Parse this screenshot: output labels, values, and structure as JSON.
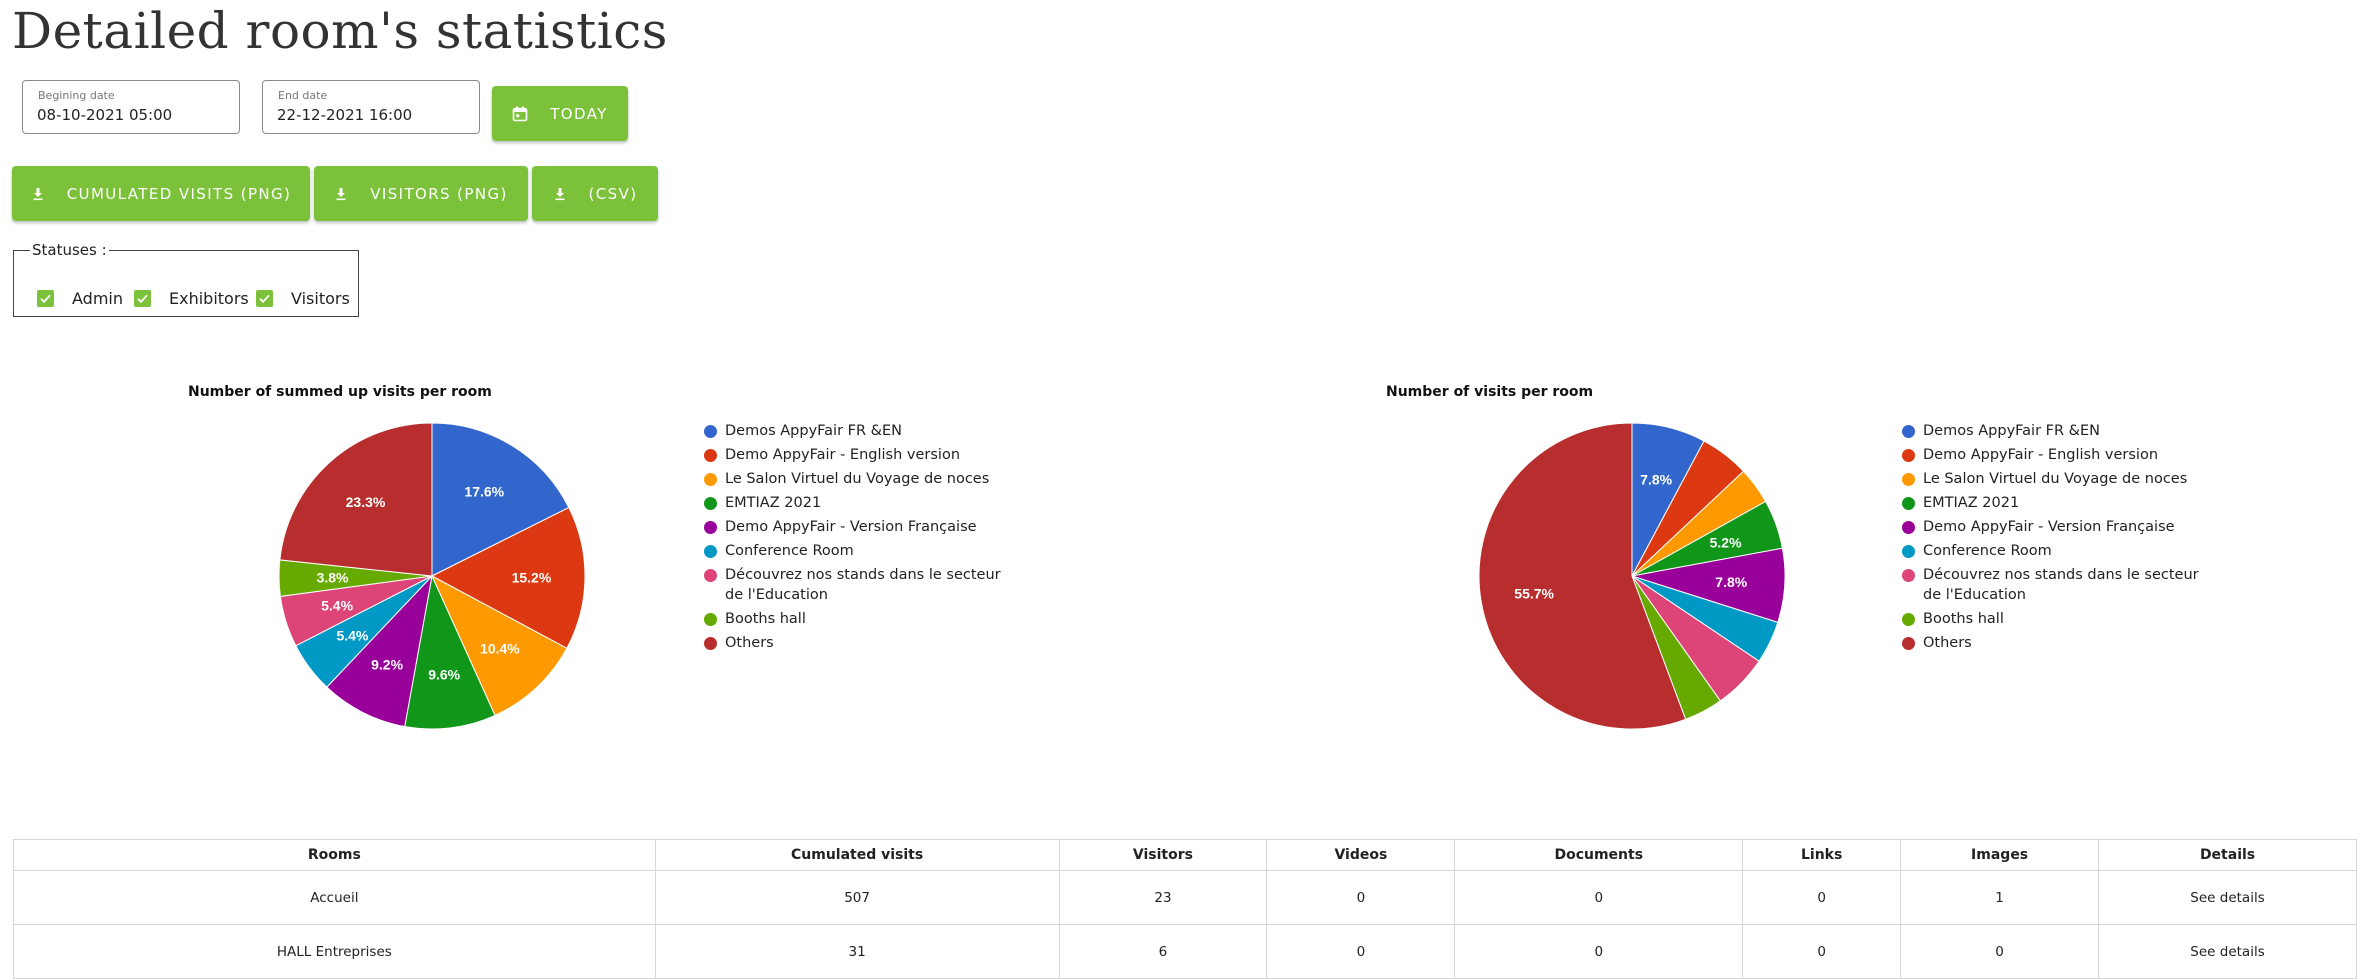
{
  "page": {
    "title": "Detailed room's statistics"
  },
  "filters": {
    "begin_label": "Begining date",
    "begin_value": "08-10-2021 05:00",
    "end_label": "End date",
    "end_value": "22-12-2021 16:00",
    "today_label": "TODAY",
    "today_icon": "calendar-icon"
  },
  "exports": {
    "cumulated_label": "CUMULATED VISITS (PNG)",
    "visitors_label": "VISITORS (PNG)",
    "csv_label": "(CSV)",
    "icon": "download-icon"
  },
  "statuses": {
    "legend": "Statuses :",
    "items": [
      {
        "label": "Admin",
        "checked": true
      },
      {
        "label": "Exhibitors",
        "checked": true
      },
      {
        "label": "Visitors",
        "checked": true
      }
    ]
  },
  "colors": {
    "accent": "#7cc13a"
  },
  "chart_data": [
    {
      "type": "pie",
      "title": "Number of summed up visits per room",
      "legend_position": "right",
      "categories": [
        "Demos AppyFair FR &EN",
        "Demo AppyFair - English version",
        "Le Salon Virtuel du Voyage de noces",
        "EMTIAZ 2021",
        "Demo AppyFair - Version Française",
        "Conference Room",
        "Découvrez nos stands dans le secteur de l'Education",
        "Booths hall",
        "Others"
      ],
      "colors": [
        "#3366cc",
        "#dc3912",
        "#ff9900",
        "#109618",
        "#990099",
        "#0099c6",
        "#dd4477",
        "#66aa00",
        "#b82e2e"
      ],
      "values": [
        17.6,
        15.2,
        10.4,
        9.6,
        9.2,
        5.4,
        5.4,
        3.8,
        23.3
      ],
      "labels": [
        "17.6%",
        "15.2%",
        "10.4%",
        "9.6%",
        "9.2%",
        "5.4%",
        "5.4%",
        "3.8%",
        "23.3%"
      ]
    },
    {
      "type": "pie",
      "title": "Number of visits per room",
      "legend_position": "right",
      "categories": [
        "Demos AppyFair FR &EN",
        "Demo AppyFair - English version",
        "Le Salon Virtuel du Voyage de noces",
        "EMTIAZ 2021",
        "Demo AppyFair - Version Française",
        "Conference Room",
        "Découvrez nos stands dans le secteur de l'Education",
        "Booths hall",
        "Others"
      ],
      "colors": [
        "#3366cc",
        "#dc3912",
        "#ff9900",
        "#109618",
        "#990099",
        "#0099c6",
        "#dd4477",
        "#66aa00",
        "#b82e2e"
      ],
      "values": [
        7.8,
        5.2,
        3.9,
        5.2,
        7.8,
        4.5,
        5.8,
        4.1,
        55.7
      ],
      "labels": [
        "7.8%",
        "",
        "",
        "5.2%",
        "7.8%",
        "",
        "",
        "",
        "55.7%"
      ]
    }
  ],
  "table": {
    "headers": [
      "Rooms",
      "Cumulated visits",
      "Visitors",
      "Videos",
      "Documents",
      "Links",
      "Images",
      "Details"
    ],
    "rows": [
      [
        "Accueil",
        "507",
        "23",
        "0",
        "0",
        "0",
        "1",
        "See details"
      ],
      [
        "HALL Entreprises",
        "31",
        "6",
        "0",
        "0",
        "0",
        "0",
        "See details"
      ]
    ]
  }
}
